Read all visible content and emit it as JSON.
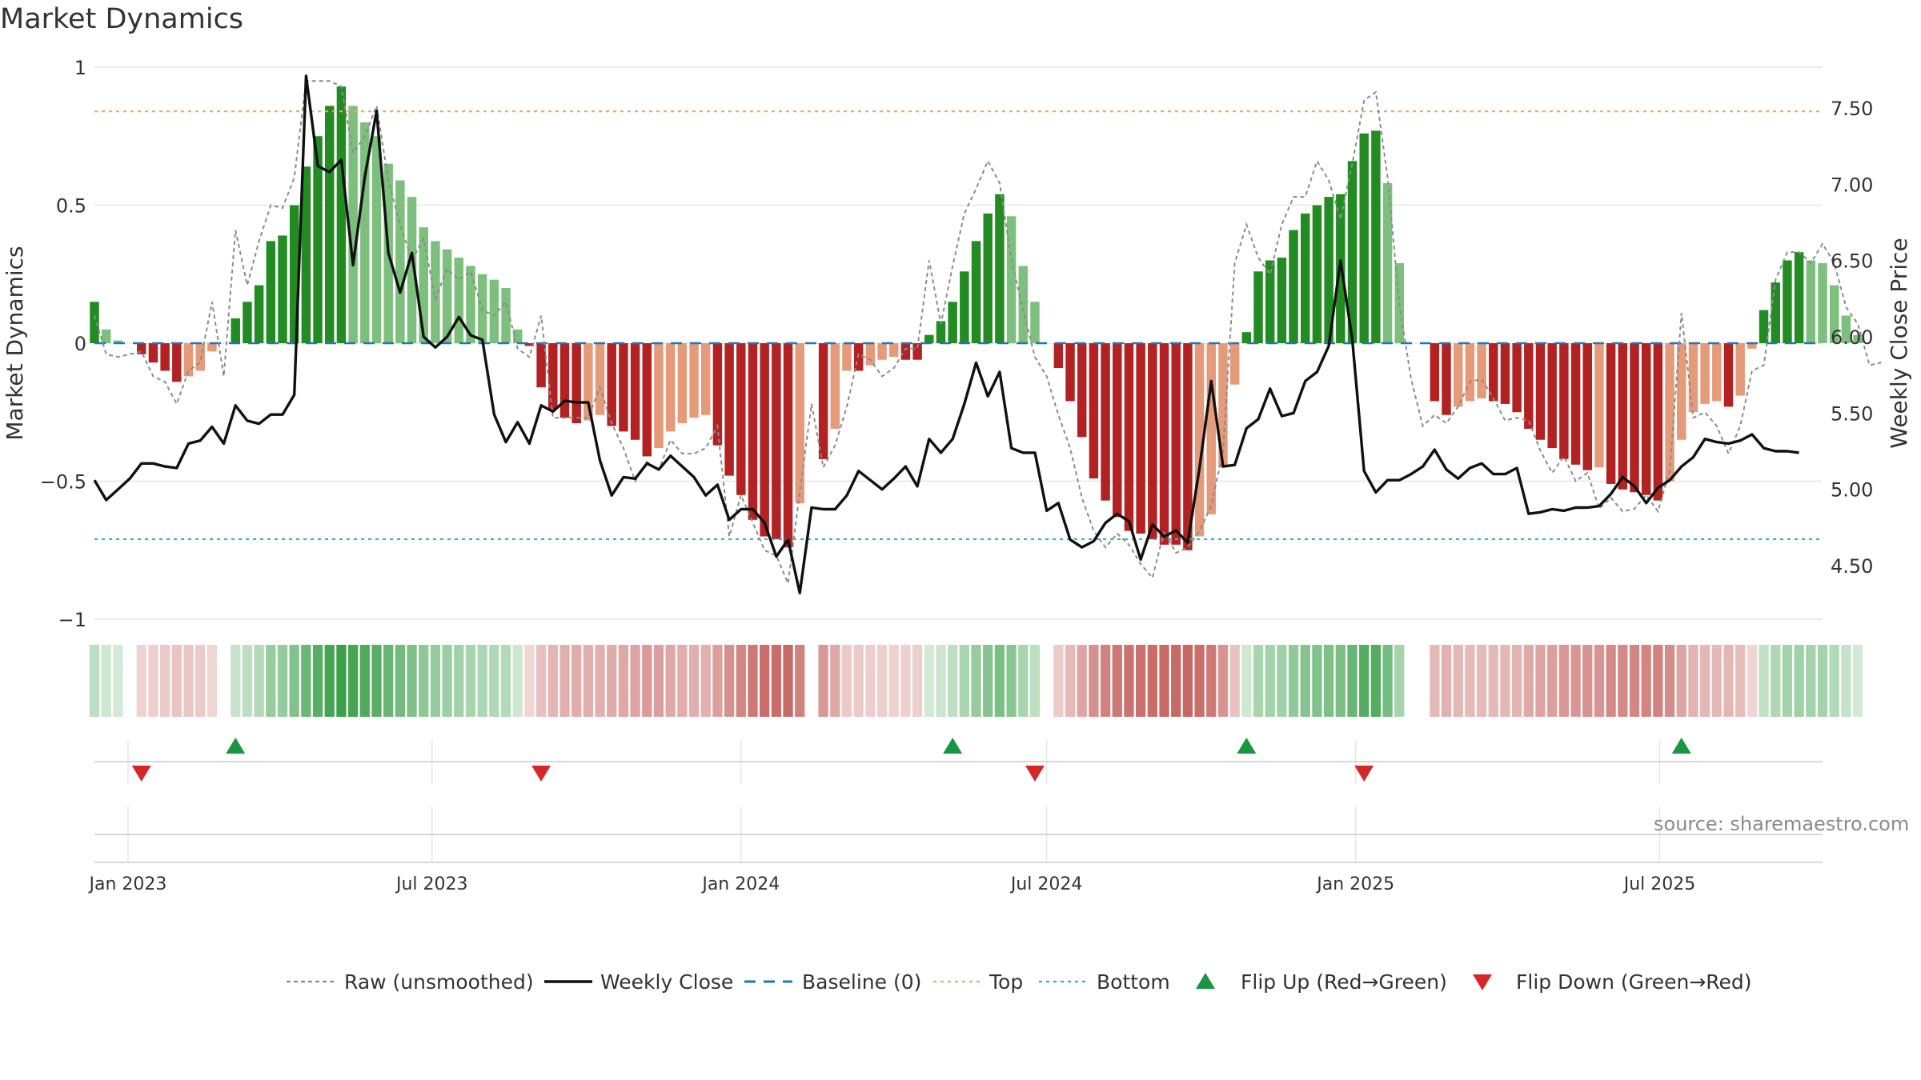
{
  "title": "Market Dynamics",
  "source_label": "source: sharemaestro.com",
  "legend": [
    {
      "key": "raw",
      "label": "Raw (unsmoothed)",
      "icon": "dotted-line"
    },
    {
      "key": "close",
      "label": "Weekly Close",
      "icon": "solid-line"
    },
    {
      "key": "baseline",
      "label": "Baseline (0)",
      "icon": "dashed-line"
    },
    {
      "key": "top",
      "label": "Top",
      "icon": "dotted-line"
    },
    {
      "key": "bottom",
      "label": "Bottom",
      "icon": "dotted-line"
    },
    {
      "key": "flip_up",
      "label": "Flip Up (Red→Green)",
      "icon": "triangle-up-icon"
    },
    {
      "key": "flip_down",
      "label": "Flip Down (Green→Red)",
      "icon": "triangle-down-icon"
    }
  ],
  "colors": {
    "green_strong": "#228b22",
    "green_light": "#7dbf7d",
    "red_strong": "#b22222",
    "red_light": "#e59a7a",
    "raw": "#8c8c8c",
    "close": "#111111",
    "baseline": "#1f77b4",
    "top": "#f4a460",
    "bottom": "#26b5d8",
    "flip_up": "#1a9641",
    "flip_down": "#d62728"
  },
  "chart_data": {
    "type": "bar",
    "ylabel": "Market Dynamics",
    "y2label": "Weekly Close Price",
    "ylim": [
      -1,
      1
    ],
    "y2lim": [
      4.1,
      7.75
    ],
    "yticks": [
      1,
      0.5,
      0,
      -0.5,
      -1
    ],
    "ytick_labels": [
      "1",
      "0.5",
      "0",
      "−0.5",
      "−1"
    ],
    "y2ticks": [
      7.5,
      7.0,
      6.5,
      6.0,
      5.5,
      5.0,
      4.5
    ],
    "y2tick_labels": [
      "7.50",
      "7.00",
      "6.50",
      "6.00",
      "5.50",
      "5.00",
      "4.50"
    ],
    "x_start": "2022-12-12",
    "week_days": 7,
    "x_end": "2025-10-06",
    "xticks": [
      "2023-01-01",
      "2023-07-01",
      "2024-01-01",
      "2024-07-01",
      "2025-01-01",
      "2025-07-01"
    ],
    "xtick_labels": [
      "Jan 2023",
      "Jul 2023",
      "Jan 2024",
      "Jul 2024",
      "Jan 2025",
      "Jul 2025"
    ],
    "top_line": 0.84,
    "bottom_line": -0.71,
    "baseline": 0,
    "series": [
      {
        "name": "Market Dynamics",
        "values": [
          0.15,
          0.05,
          0.01,
          0,
          -0.04,
          -0.07,
          -0.1,
          -0.14,
          -0.12,
          -0.1,
          -0.03,
          0,
          0.09,
          0.15,
          0.21,
          0.37,
          0.39,
          0.5,
          0.64,
          0.75,
          0.86,
          0.93,
          0.86,
          0.8,
          0.75,
          0.65,
          0.59,
          0.53,
          0.42,
          0.37,
          0.34,
          0.31,
          0.28,
          0.25,
          0.23,
          0.2,
          0.05,
          -0.01,
          -0.16,
          -0.24,
          -0.27,
          -0.29,
          -0.28,
          -0.26,
          -0.3,
          -0.32,
          -0.35,
          -0.41,
          -0.38,
          -0.32,
          -0.29,
          -0.27,
          -0.26,
          -0.37,
          -0.48,
          -0.55,
          -0.64,
          -0.7,
          -0.71,
          -0.74,
          -0.58,
          0,
          -0.42,
          -0.31,
          -0.1,
          -0.1,
          -0.08,
          -0.06,
          -0.05,
          -0.06,
          -0.06,
          0.03,
          0.08,
          0.15,
          0.26,
          0.37,
          0.47,
          0.54,
          0.46,
          0.28,
          0.15,
          0,
          -0.09,
          -0.21,
          -0.34,
          -0.49,
          -0.57,
          -0.63,
          -0.68,
          -0.69,
          -0.71,
          -0.73,
          -0.73,
          -0.75,
          -0.7,
          -0.62,
          -0.45,
          -0.15,
          0.04,
          0.26,
          0.3,
          0.31,
          0.41,
          0.47,
          0.5,
          0.53,
          0.54,
          0.66,
          0.76,
          0.77,
          0.58,
          0.29,
          0,
          0,
          -0.21,
          -0.26,
          -0.23,
          -0.21,
          -0.2,
          -0.21,
          -0.22,
          -0.25,
          -0.31,
          -0.35,
          -0.38,
          -0.42,
          -0.44,
          -0.46,
          -0.45,
          -0.51,
          -0.53,
          -0.54,
          -0.55,
          -0.57,
          -0.5,
          -0.35,
          -0.25,
          -0.22,
          -0.21,
          -0.23,
          -0.19,
          -0.02,
          0.12,
          0.22,
          0.3,
          0.33,
          0.3,
          0.29,
          0.21,
          0.1,
          0.03
        ]
      },
      {
        "name": "Raw (unsmoothed)",
        "values": [
          0.1,
          -0.04,
          -0.05,
          -0.04,
          -0.03,
          -0.12,
          -0.14,
          -0.22,
          -0.1,
          -0.07,
          0.15,
          -0.12,
          0.41,
          0.21,
          0.37,
          0.5,
          0.49,
          0.6,
          0.95,
          0.95,
          0.95,
          0.93,
          0.69,
          0.75,
          0.86,
          0.59,
          0.43,
          0.3,
          0.38,
          0.16,
          0.27,
          0.23,
          0.26,
          0.12,
          0.1,
          0.15,
          -0.02,
          -0.05,
          0.1,
          -0.27,
          -0.27,
          -0.27,
          -0.27,
          -0.16,
          -0.29,
          -0.38,
          -0.5,
          -0.43,
          -0.46,
          -0.35,
          -0.4,
          -0.4,
          -0.38,
          -0.3,
          -0.7,
          -0.55,
          -0.65,
          -0.75,
          -0.77,
          -0.87,
          -0.54,
          -0.22,
          -0.45,
          -0.37,
          -0.23,
          -0.04,
          -0.06,
          -0.12,
          -0.09,
          -0.02,
          -0.02,
          0.3,
          0.07,
          0.28,
          0.47,
          0.56,
          0.66,
          0.58,
          0.3,
          0.12,
          -0.05,
          -0.12,
          -0.26,
          -0.38,
          -0.56,
          -0.68,
          -0.74,
          -0.69,
          -0.73,
          -0.8,
          -0.85,
          -0.68,
          -0.76,
          -0.74,
          -0.68,
          -0.59,
          -0.39,
          0.29,
          0.43,
          0.31,
          0.25,
          0.43,
          0.53,
          0.53,
          0.66,
          0.59,
          0.45,
          0.65,
          0.88,
          0.91,
          0.6,
          0.14,
          -0.13,
          -0.3,
          -0.26,
          -0.29,
          -0.23,
          -0.14,
          -0.13,
          -0.2,
          -0.28,
          -0.27,
          -0.28,
          -0.39,
          -0.47,
          -0.41,
          -0.5,
          -0.47,
          -0.6,
          -0.56,
          -0.61,
          -0.6,
          -0.55,
          -0.61,
          -0.46,
          0.11,
          -0.27,
          -0.25,
          -0.3,
          -0.4,
          -0.3,
          -0.1,
          -0.08,
          0.23,
          0.33,
          0.33,
          0.29,
          0.36,
          0.29,
          0.13,
          0.07,
          -0.08,
          -0.07
        ]
      },
      {
        "name": "Weekly Close",
        "axis": "right",
        "values": [
          5.06,
          4.93,
          5.0,
          5.07,
          5.17,
          5.17,
          5.15,
          5.14,
          5.3,
          5.32,
          5.41,
          5.3,
          5.55,
          5.45,
          5.43,
          5.49,
          5.49,
          5.62,
          7.71,
          7.12,
          7.08,
          7.16,
          6.47,
          7.05,
          7.48,
          6.55,
          6.29,
          6.55,
          6.0,
          5.93,
          6.0,
          6.13,
          6.01,
          5.98,
          5.49,
          5.31,
          5.44,
          5.3,
          5.55,
          5.51,
          5.58,
          5.57,
          5.57,
          5.19,
          4.96,
          5.08,
          5.07,
          5.17,
          5.13,
          5.22,
          5.15,
          5.08,
          4.96,
          5.03,
          4.8,
          4.87,
          4.87,
          4.78,
          4.56,
          4.67,
          4.32,
          4.88,
          4.87,
          4.87,
          4.96,
          5.12,
          5.06,
          5.0,
          5.07,
          5.15,
          5.02,
          5.33,
          5.24,
          5.33,
          5.56,
          5.83,
          5.61,
          5.77,
          5.27,
          5.24,
          5.24,
          4.86,
          4.91,
          4.67,
          4.62,
          4.66,
          4.78,
          4.84,
          4.79,
          4.54,
          4.77,
          4.69,
          4.73,
          4.65,
          5.14,
          5.71,
          5.15,
          5.16,
          5.4,
          5.46,
          5.66,
          5.48,
          5.5,
          5.71,
          5.77,
          5.94,
          6.5,
          5.98,
          5.12,
          4.98,
          5.06,
          5.06,
          5.1,
          5.15,
          5.26,
          5.13,
          5.07,
          5.14,
          5.17,
          5.1,
          5.1,
          5.14,
          4.84,
          4.85,
          4.87,
          4.86,
          4.88,
          4.88,
          4.89,
          4.97,
          5.08,
          5.02,
          4.91,
          5.01,
          5.06,
          5.15,
          5.21,
          5.33,
          5.31,
          5.3,
          5.32,
          5.36,
          5.27,
          5.25,
          5.25,
          5.24
        ]
      }
    ],
    "flips_up": [
      "2023-03-06",
      "2024-05-06",
      "2024-10-28",
      "2025-07-14"
    ],
    "flips_down": [
      "2023-01-09",
      "2023-09-04",
      "2024-06-24",
      "2025-01-06"
    ]
  }
}
